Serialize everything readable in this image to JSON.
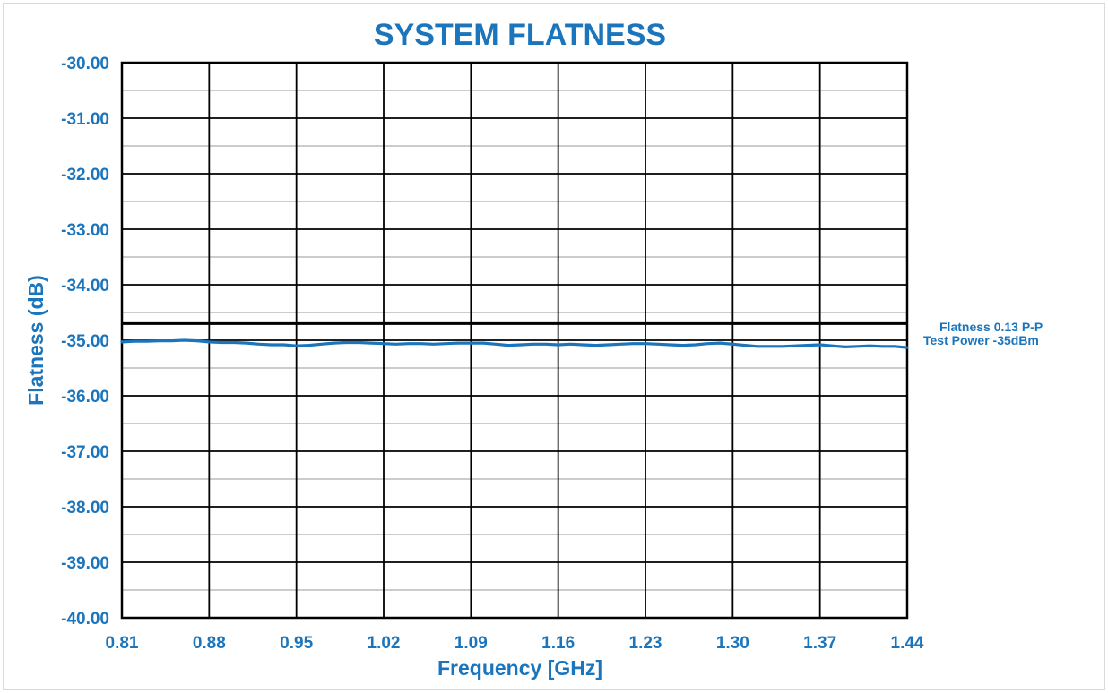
{
  "colors": {
    "accent": "#1b75bc",
    "grid": "#000000",
    "minor_grid": "#9a9a9a"
  },
  "chart_data": {
    "type": "line",
    "title": "SYSTEM FLATNESS",
    "xlabel": "Frequency [GHz]",
    "ylabel": "Flatness (dB)",
    "xlim": [
      0.81,
      1.44
    ],
    "ylim": [
      -40.0,
      -30.0
    ],
    "x_ticks": [
      "0.81",
      "0.88",
      "0.95",
      "1.02",
      "1.09",
      "1.16",
      "1.23",
      "1.30",
      "1.37",
      "1.44"
    ],
    "y_ticks": [
      "-30.00",
      "-31.00",
      "-32.00",
      "-33.00",
      "-34.00",
      "-35.00",
      "-36.00",
      "-37.00",
      "-38.00",
      "-39.00",
      "-40.00"
    ],
    "grid": true,
    "reference_line": {
      "y": -34.7
    },
    "annotations": [
      "Flatness 0.13 P-P",
      "Test Power -35dBm"
    ],
    "series": [
      {
        "x": [
          0.81,
          0.82,
          0.83,
          0.84,
          0.85,
          0.86,
          0.87,
          0.88,
          0.89,
          0.9,
          0.91,
          0.92,
          0.93,
          0.94,
          0.95,
          0.96,
          0.97,
          0.98,
          0.99,
          1.0,
          1.01,
          1.02,
          1.03,
          1.04,
          1.05,
          1.06,
          1.07,
          1.08,
          1.09,
          1.1,
          1.11,
          1.12,
          1.13,
          1.14,
          1.15,
          1.16,
          1.17,
          1.18,
          1.19,
          1.2,
          1.21,
          1.22,
          1.23,
          1.24,
          1.25,
          1.26,
          1.27,
          1.28,
          1.29,
          1.3,
          1.31,
          1.32,
          1.33,
          1.34,
          1.35,
          1.36,
          1.37,
          1.38,
          1.39,
          1.4,
          1.41,
          1.42,
          1.43,
          1.44
        ],
        "y": [
          -35.03,
          -35.02,
          -35.02,
          -35.01,
          -35.01,
          -35.0,
          -35.01,
          -35.03,
          -35.04,
          -35.04,
          -35.05,
          -35.07,
          -35.08,
          -35.08,
          -35.1,
          -35.09,
          -35.07,
          -35.05,
          -35.04,
          -35.04,
          -35.05,
          -35.06,
          -35.07,
          -35.06,
          -35.06,
          -35.07,
          -35.06,
          -35.05,
          -35.05,
          -35.05,
          -35.07,
          -35.09,
          -35.08,
          -35.07,
          -35.07,
          -35.08,
          -35.07,
          -35.08,
          -35.09,
          -35.08,
          -35.07,
          -35.06,
          -35.06,
          -35.07,
          -35.08,
          -35.09,
          -35.08,
          -35.06,
          -35.05,
          -35.07,
          -35.09,
          -35.11,
          -35.11,
          -35.11,
          -35.1,
          -35.09,
          -35.08,
          -35.1,
          -35.12,
          -35.11,
          -35.1,
          -35.11,
          -35.11,
          -35.13
        ]
      }
    ]
  }
}
